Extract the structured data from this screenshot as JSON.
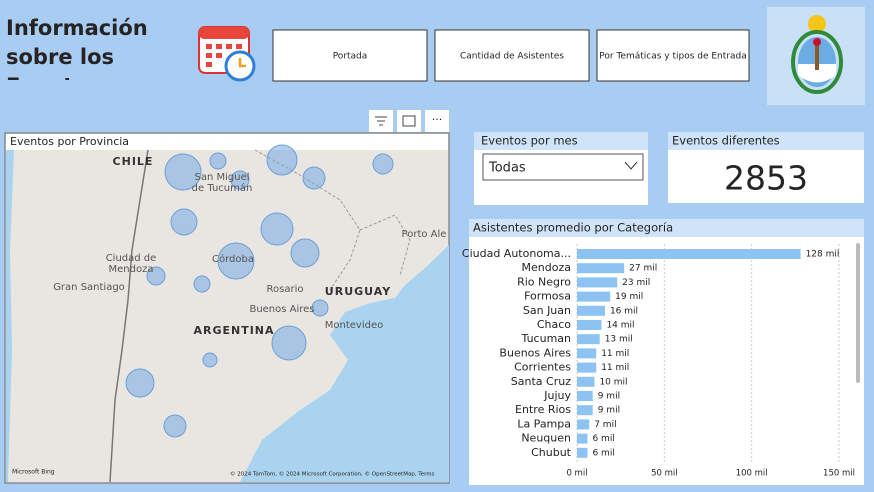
{
  "header": {
    "title": "Información sobre los Eventos"
  },
  "nav": [
    "Portada",
    "Cantidad de Asistentes",
    "Por Temáticas y tipos de Entrada"
  ],
  "map": {
    "title": "Eventos por Provincia",
    "labels": [
      "CHILE",
      "San Miguel",
      "de Tucumán",
      "Ciudad de",
      "Mendoza",
      "Gran Santiago",
      "Córdoba",
      "Rosario",
      "Buenos Aires",
      "URUGUAY",
      "Montevideo",
      "ARGENTINA",
      "Porto Ale"
    ],
    "brand": "Microsoft Bing",
    "attribution": "© 2024 TomTom, © 2024 Microsoft Corporation, © OpenStreetMap, Terms"
  },
  "slicer": {
    "title": "Eventos por mes",
    "selected": "Todas"
  },
  "card": {
    "title": "Eventos diferentes",
    "value": 2853
  },
  "chart_data": {
    "type": "bar",
    "orientation": "horizontal",
    "title": "Asistentes promedio por Categoría",
    "categories": [
      "Ciudad Autonoma...",
      "Mendoza",
      "Rio Negro",
      "Formosa",
      "San Juan",
      "Chaco",
      "Tucuman",
      "Buenos Aires",
      "Corrientes",
      "Santa Cruz",
      "Jujuy",
      "Entre Rios",
      "La Pampa",
      "Neuquen",
      "Chubut"
    ],
    "values": [
      128000,
      27000,
      23000,
      19000,
      16000,
      14000,
      13000,
      11000,
      11000,
      10000,
      9000,
      9000,
      7000,
      6000,
      6000
    ],
    "value_labels": [
      "128 mil",
      "27 mil",
      "23 mil",
      "19 mil",
      "16 mil",
      "14 mil",
      "13 mil",
      "11 mil",
      "11 mil",
      "10 mil",
      "9 mil",
      "9 mil",
      "7 mil",
      "6 mil",
      "6 mil"
    ],
    "color": "#8cc3f2",
    "xlim": [
      0,
      150000
    ],
    "xticks": [
      {
        "value": 0,
        "label": "0 mil"
      },
      {
        "value": 50000,
        "label": "50 mil"
      },
      {
        "value": 100000,
        "label": "100 mil"
      },
      {
        "value": 150000,
        "label": "150 mil"
      }
    ],
    "grid": true
  }
}
